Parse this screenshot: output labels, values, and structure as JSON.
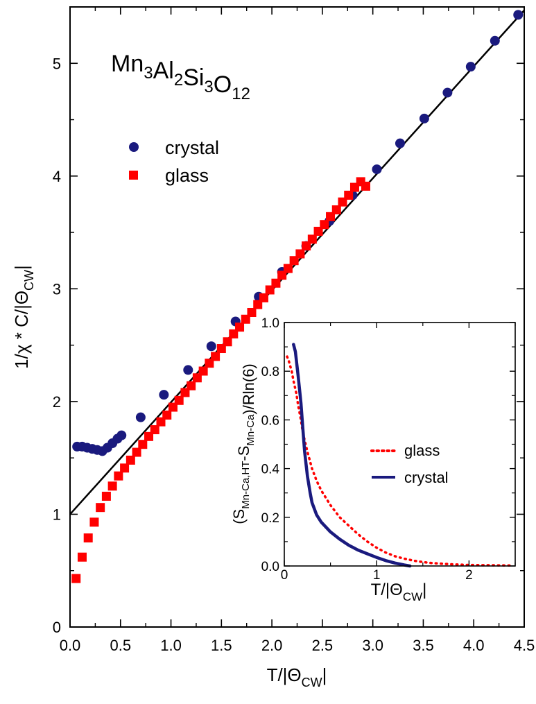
{
  "chart_data": [
    {
      "type": "scatter",
      "title": "",
      "annotation": {
        "base": "Mn",
        "parts": [
          [
            "Mn",
            "3"
          ],
          [
            "Al",
            "2"
          ],
          [
            "Si",
            "3"
          ],
          [
            "O",
            "12"
          ]
        ],
        "text": "Mn3Al2Si3O12"
      },
      "xlabel": {
        "main": "T/|Θ",
        "sub": "CW",
        "tail": "|"
      },
      "ylabel": {
        "main": "1/χ * C/|Θ",
        "sub": "CW",
        "tail": "|"
      },
      "xlim": [
        0,
        4.5
      ],
      "ylim": [
        0,
        5.5
      ],
      "xticks": [
        "0.0",
        "0.5",
        "1.0",
        "1.5",
        "2.0",
        "2.5",
        "3.0",
        "3.5",
        "4.0",
        "4.5"
      ],
      "yticks": [
        "0",
        "1",
        "2",
        "3",
        "4",
        "5"
      ],
      "legend": {
        "placement": "upper-left"
      },
      "series": [
        {
          "name": "crystal",
          "marker": "circle",
          "color": "#1a1a7e",
          "x": [
            0.07,
            0.12,
            0.17,
            0.22,
            0.27,
            0.32,
            0.37,
            0.42,
            0.47,
            0.51,
            0.7,
            0.93,
            1.17,
            1.4,
            1.64,
            1.87,
            2.1,
            2.34,
            2.57,
            2.8,
            3.04,
            3.27,
            3.51,
            3.74,
            3.97,
            4.21,
            4.44
          ],
          "y": [
            1.6,
            1.6,
            1.59,
            1.58,
            1.57,
            1.56,
            1.59,
            1.63,
            1.67,
            1.7,
            1.86,
            2.06,
            2.28,
            2.49,
            2.71,
            2.93,
            3.15,
            3.38,
            3.6,
            3.83,
            4.06,
            4.29,
            4.51,
            4.74,
            4.97,
            5.2,
            5.43
          ]
        },
        {
          "name": "glass",
          "marker": "square",
          "color": "#ff0000",
          "x": [
            0.06,
            0.12,
            0.18,
            0.24,
            0.3,
            0.36,
            0.42,
            0.48,
            0.54,
            0.6,
            0.66,
            0.72,
            0.78,
            0.84,
            0.9,
            0.96,
            1.02,
            1.08,
            1.14,
            1.2,
            1.26,
            1.32,
            1.38,
            1.44,
            1.5,
            1.56,
            1.62,
            1.68,
            1.74,
            1.8,
            1.86,
            1.92,
            1.98,
            2.04,
            2.1,
            2.16,
            2.22,
            2.28,
            2.34,
            2.4,
            2.46,
            2.52,
            2.58,
            2.64,
            2.7,
            2.76,
            2.82,
            2.88,
            2.93
          ],
          "y": [
            0.43,
            0.62,
            0.79,
            0.93,
            1.06,
            1.16,
            1.25,
            1.34,
            1.41,
            1.48,
            1.55,
            1.62,
            1.69,
            1.75,
            1.82,
            1.88,
            1.95,
            2.01,
            2.08,
            2.14,
            2.21,
            2.27,
            2.34,
            2.4,
            2.47,
            2.53,
            2.6,
            2.66,
            2.73,
            2.79,
            2.86,
            2.92,
            2.99,
            3.05,
            3.12,
            3.18,
            3.25,
            3.31,
            3.38,
            3.44,
            3.51,
            3.57,
            3.64,
            3.7,
            3.77,
            3.83,
            3.9,
            3.95,
            3.91
          ]
        },
        {
          "name": "",
          "marker": "line",
          "color": "#000000",
          "x": [
            0,
            4.5
          ],
          "y": [
            1.0,
            5.47
          ]
        }
      ]
    },
    {
      "type": "line",
      "title": "",
      "xlabel": {
        "main": "T/|Θ",
        "sub": "CW",
        "tail": "|"
      },
      "ylabel": {
        "parts": [
          [
            "(S",
            ""
          ],
          [
            "",
            "Mn-Ca,HT"
          ],
          [
            "-S",
            ""
          ],
          [
            "",
            "Mn-Ca"
          ],
          [
            ")/Rln(6)",
            ""
          ]
        ],
        "text": "(SMn-Ca,HT-SMn-Ca)/Rln(6)"
      },
      "xlim": [
        0,
        2.5
      ],
      "ylim": [
        0,
        1.0
      ],
      "xticks": [
        "0",
        "1",
        "2"
      ],
      "yticks": [
        "0.0",
        "0.2",
        "0.4",
        "0.6",
        "0.8",
        "1.0"
      ],
      "legend": {
        "placement": "center-right"
      },
      "series": [
        {
          "name": "glass",
          "style": "dotted",
          "color": "#ff0000",
          "x": [
            0.03,
            0.05,
            0.08,
            0.1,
            0.13,
            0.15,
            0.18,
            0.2,
            0.25,
            0.3,
            0.35,
            0.4,
            0.5,
            0.6,
            0.7,
            0.8,
            0.9,
            1.0,
            1.1,
            1.2,
            1.3,
            1.4,
            1.5,
            1.6,
            1.8,
            2.0,
            2.2,
            2.45
          ],
          "y": [
            0.86,
            0.84,
            0.8,
            0.76,
            0.71,
            0.66,
            0.6,
            0.55,
            0.47,
            0.4,
            0.35,
            0.31,
            0.25,
            0.2,
            0.165,
            0.13,
            0.1,
            0.075,
            0.055,
            0.04,
            0.03,
            0.022,
            0.016,
            0.012,
            0.007,
            0.004,
            0.003,
            0.002
          ]
        },
        {
          "name": "crystal",
          "style": "solid",
          "color": "#1a1a7e",
          "x": [
            0.1,
            0.12,
            0.15,
            0.18,
            0.2,
            0.22,
            0.25,
            0.28,
            0.3,
            0.35,
            0.4,
            0.5,
            0.6,
            0.7,
            0.8,
            0.9,
            1.0,
            1.1,
            1.2,
            1.3,
            1.36
          ],
          "y": [
            0.91,
            0.88,
            0.78,
            0.67,
            0.57,
            0.47,
            0.37,
            0.3,
            0.26,
            0.21,
            0.18,
            0.14,
            0.11,
            0.085,
            0.065,
            0.05,
            0.035,
            0.022,
            0.012,
            0.004,
            0.0
          ]
        }
      ]
    }
  ]
}
